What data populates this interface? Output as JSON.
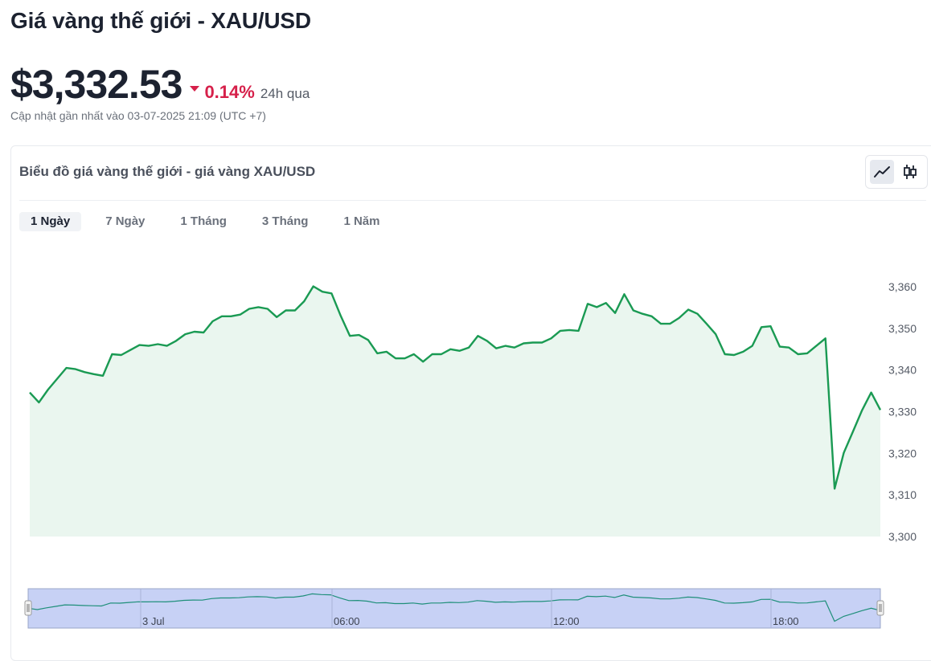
{
  "header": {
    "title": "Giá vàng thế giới - XAU/USD",
    "price": "$3,332.53",
    "change": "0.14%",
    "period": "24h qua",
    "updated": "Cập nhật gần nhất vào 03-07-2025 21:09 (UTC +7)"
  },
  "chart_card": {
    "title": "Biểu đồ giá vàng thế giới - giá vàng XAU/USD",
    "types": [
      {
        "name": "line",
        "icon": "line-chart-icon",
        "active": true
      },
      {
        "name": "candlestick",
        "icon": "candlestick-icon",
        "active": false
      }
    ],
    "tabs": [
      {
        "label": "1 Ngày",
        "active": true
      },
      {
        "label": "7 Ngày",
        "active": false
      },
      {
        "label": "1 Tháng",
        "active": false
      },
      {
        "label": "3 Tháng",
        "active": false
      },
      {
        "label": "1 Năm",
        "active": false
      }
    ]
  },
  "colors": {
    "line": "#1a9a53",
    "area": "#eaf6ef",
    "down": "#d6204a",
    "navigator_fill": "#c7d1f5",
    "navigator_border": "#9aa6c8"
  },
  "chart_data": {
    "type": "area",
    "title": "",
    "xlabel": "",
    "ylabel": "",
    "y_ticks": [
      "3,360",
      "3,350",
      "3,340",
      "3,330",
      "3,320",
      "3,310",
      "3,300"
    ],
    "ylim": [
      3300,
      3360
    ],
    "grid": false,
    "navigator_ticks": [
      "3 Jul",
      "06:00",
      "12:00",
      "18:00"
    ],
    "series": [
      {
        "values": [
          3334.6,
          3332.2,
          3335.3,
          3337.9,
          3340.5,
          3340.2,
          3339.5,
          3339.0,
          3338.6,
          3343.8,
          3343.6,
          3344.8,
          3346.0,
          3345.8,
          3346.2,
          3345.8,
          3347.0,
          3348.6,
          3349.2,
          3349.0,
          3351.7,
          3352.9,
          3352.9,
          3353.3,
          3354.7,
          3355.1,
          3354.7,
          3352.7,
          3354.3,
          3354.3,
          3356.5,
          3360.1,
          3358.8,
          3358.4,
          3353.0,
          3348.2,
          3348.4,
          3347.2,
          3344.0,
          3344.4,
          3342.8,
          3342.8,
          3343.8,
          3342.0,
          3343.8,
          3343.8,
          3345.0,
          3344.6,
          3345.4,
          3348.2,
          3347.0,
          3345.2,
          3345.8,
          3345.4,
          3346.4,
          3346.6,
          3346.6,
          3347.6,
          3349.4,
          3349.6,
          3349.4,
          3355.9,
          3355.1,
          3356.1,
          3353.7,
          3358.2,
          3354.3,
          3353.5,
          3352.9,
          3351.1,
          3351.1,
          3352.5,
          3354.5,
          3353.5,
          3351.1,
          3348.6,
          3343.8,
          3343.6,
          3344.4,
          3345.8,
          3350.3,
          3350.5,
          3345.6,
          3345.4,
          3343.8,
          3344.0,
          3345.8,
          3347.6,
          3311.5,
          3320.1,
          3325.2,
          3330.3,
          3334.6,
          3330.4
        ]
      }
    ]
  }
}
